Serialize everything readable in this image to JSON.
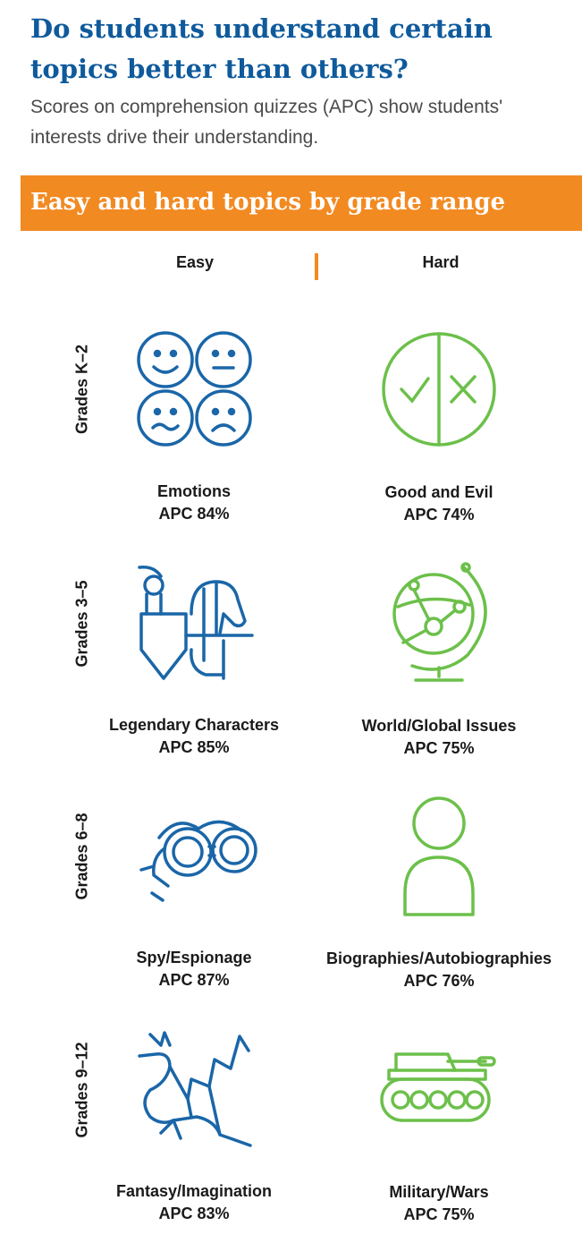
{
  "header": {
    "title": "Do students understand certain topics better than others?",
    "subtitle": "Scores on comprehension quizzes (APC) show students' interests drive their understanding."
  },
  "banner": {
    "text": "Easy and hard topics by grade range"
  },
  "columns": {
    "easy": "Easy",
    "hard": "Hard"
  },
  "colors": {
    "title": "#0f5a9c",
    "banner": "#f28a22",
    "easy_icon": "#1a66a8",
    "hard_icon": "#6cc04a"
  },
  "rows": [
    {
      "grade": "Grades K–2",
      "easy": {
        "topic": "Emotions",
        "score": "APC 84%",
        "icon": "emotion-faces-icon"
      },
      "hard": {
        "topic": "Good and Evil",
        "score": "APC 74%",
        "icon": "check-x-circle-icon"
      }
    },
    {
      "grade": "Grades 3–5",
      "easy": {
        "topic": "Legendary Characters",
        "score": "APC 85%",
        "icon": "knight-horse-icon"
      },
      "hard": {
        "topic": "World/Global Issues",
        "score": "APC 75%",
        "icon": "globe-icon"
      }
    },
    {
      "grade": "Grades 6–8",
      "easy": {
        "topic": "Spy/Espionage",
        "score": "APC 87%",
        "icon": "binoculars-icon"
      },
      "hard": {
        "topic": "Biographies/Autobiographies",
        "score": "APC 76%",
        "icon": "person-icon"
      }
    },
    {
      "grade": "Grades 9–12",
      "easy": {
        "topic": "Fantasy/Imagination",
        "score": "APC 83%",
        "icon": "dragon-icon"
      },
      "hard": {
        "topic": "Military/Wars",
        "score": "APC 75%",
        "icon": "tank-icon"
      }
    }
  ]
}
